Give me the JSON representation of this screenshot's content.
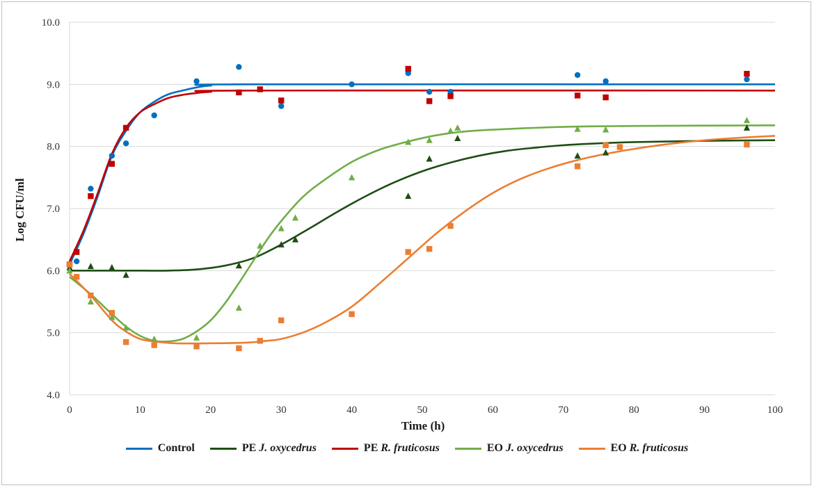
{
  "chart_data": {
    "type": "scatter",
    "title": "",
    "xlabel": "Time (h)",
    "ylabel": "Log CFU/ml",
    "xlim": [
      0,
      100
    ],
    "ylim": [
      4.0,
      10.0
    ],
    "xticks": [
      "0",
      "10",
      "20",
      "30",
      "40",
      "50",
      "60",
      "70",
      "80",
      "90",
      "100"
    ],
    "yticks": [
      "4.0",
      "5.0",
      "6.0",
      "7.0",
      "8.0",
      "9.0",
      "10.0"
    ],
    "grid": "horizontal",
    "legend_position": "bottom",
    "series": [
      {
        "name": "Control",
        "prefix": "Control",
        "italic": "",
        "color": "#0070c0",
        "marker": "circle",
        "points": [
          [
            0,
            6.1
          ],
          [
            1,
            6.15
          ],
          [
            3,
            7.32
          ],
          [
            6,
            7.85
          ],
          [
            8,
            8.05
          ],
          [
            12,
            8.5
          ],
          [
            18,
            9.05
          ],
          [
            24,
            9.28
          ],
          [
            30,
            8.65
          ],
          [
            40,
            9.0
          ],
          [
            48,
            9.18
          ],
          [
            51,
            8.88
          ],
          [
            54,
            8.88
          ],
          [
            72,
            9.15
          ],
          [
            76,
            9.05
          ],
          [
            96,
            9.08
          ]
        ],
        "fit": [
          [
            0,
            6.1
          ],
          [
            2,
            6.6
          ],
          [
            4,
            7.2
          ],
          [
            6,
            7.85
          ],
          [
            8,
            8.25
          ],
          [
            10,
            8.55
          ],
          [
            12,
            8.72
          ],
          [
            14,
            8.84
          ],
          [
            16,
            8.9
          ],
          [
            18,
            8.95
          ],
          [
            20,
            8.98
          ],
          [
            25,
            9.0
          ],
          [
            100,
            9.0
          ]
        ]
      },
      {
        "name": "PE J. oxycedrus",
        "prefix": "PE ",
        "italic": "J. oxycedrus",
        "color": "#1e4d14",
        "marker": "triangle",
        "points": [
          [
            0,
            6.05
          ],
          [
            3,
            6.07
          ],
          [
            6,
            6.05
          ],
          [
            8,
            5.93
          ],
          [
            24,
            6.08
          ],
          [
            30,
            6.42
          ],
          [
            32,
            6.5
          ],
          [
            48,
            7.2
          ],
          [
            51,
            7.8
          ],
          [
            55,
            8.13
          ],
          [
            72,
            7.85
          ],
          [
            76,
            7.9
          ],
          [
            96,
            8.3
          ]
        ],
        "fit": [
          [
            0,
            6.0
          ],
          [
            10,
            6.0
          ],
          [
            14,
            6.0
          ],
          [
            18,
            6.02
          ],
          [
            22,
            6.08
          ],
          [
            26,
            6.2
          ],
          [
            30,
            6.42
          ],
          [
            34,
            6.68
          ],
          [
            38,
            6.95
          ],
          [
            42,
            7.2
          ],
          [
            46,
            7.42
          ],
          [
            50,
            7.6
          ],
          [
            54,
            7.74
          ],
          [
            58,
            7.85
          ],
          [
            62,
            7.93
          ],
          [
            66,
            7.98
          ],
          [
            70,
            8.02
          ],
          [
            75,
            8.05
          ],
          [
            80,
            8.07
          ],
          [
            90,
            8.09
          ],
          [
            100,
            8.1
          ]
        ]
      },
      {
        "name": "PE R. fruticosus",
        "prefix": "PE ",
        "italic": "R. fruticosus",
        "color": "#c00000",
        "marker": "square",
        "points": [
          [
            0,
            6.1
          ],
          [
            1,
            6.3
          ],
          [
            3,
            7.2
          ],
          [
            6,
            7.72
          ],
          [
            8,
            8.3
          ],
          [
            24,
            8.87
          ],
          [
            27,
            8.92
          ],
          [
            30,
            8.74
          ],
          [
            48,
            9.25
          ],
          [
            51,
            8.73
          ],
          [
            54,
            8.81
          ],
          [
            72,
            8.82
          ],
          [
            76,
            8.79
          ],
          [
            96,
            9.17
          ]
        ],
        "fit": [
          [
            0,
            6.15
          ],
          [
            2,
            6.65
          ],
          [
            4,
            7.25
          ],
          [
            6,
            7.88
          ],
          [
            8,
            8.3
          ],
          [
            10,
            8.55
          ],
          [
            12,
            8.68
          ],
          [
            14,
            8.78
          ],
          [
            16,
            8.83
          ],
          [
            18,
            8.86
          ],
          [
            20,
            8.88
          ],
          [
            25,
            8.9
          ],
          [
            100,
            8.9
          ]
        ]
      },
      {
        "name": "EO J. oxycedrus",
        "prefix": "EO ",
        "italic": "J. oxycedrus",
        "color": "#70ad47",
        "marker": "triangle",
        "points": [
          [
            0,
            6.0
          ],
          [
            3,
            5.5
          ],
          [
            6,
            5.25
          ],
          [
            8,
            5.08
          ],
          [
            12,
            4.9
          ],
          [
            18,
            4.92
          ],
          [
            24,
            5.4
          ],
          [
            27,
            6.4
          ],
          [
            30,
            6.68
          ],
          [
            32,
            6.85
          ],
          [
            40,
            7.5
          ],
          [
            48,
            8.07
          ],
          [
            51,
            8.1
          ],
          [
            54,
            8.25
          ],
          [
            55,
            8.3
          ],
          [
            72,
            8.28
          ],
          [
            76,
            8.27
          ],
          [
            96,
            8.42
          ]
        ],
        "fit": [
          [
            0,
            5.9
          ],
          [
            3,
            5.62
          ],
          [
            6,
            5.3
          ],
          [
            8,
            5.1
          ],
          [
            10,
            4.95
          ],
          [
            12,
            4.87
          ],
          [
            14,
            4.86
          ],
          [
            16,
            4.9
          ],
          [
            18,
            5.02
          ],
          [
            20,
            5.2
          ],
          [
            22,
            5.47
          ],
          [
            24,
            5.8
          ],
          [
            26,
            6.15
          ],
          [
            28,
            6.5
          ],
          [
            30,
            6.8
          ],
          [
            33,
            7.18
          ],
          [
            36,
            7.45
          ],
          [
            40,
            7.75
          ],
          [
            44,
            7.95
          ],
          [
            48,
            8.08
          ],
          [
            52,
            8.18
          ],
          [
            56,
            8.24
          ],
          [
            60,
            8.27
          ],
          [
            66,
            8.3
          ],
          [
            72,
            8.32
          ],
          [
            80,
            8.33
          ],
          [
            100,
            8.34
          ]
        ]
      },
      {
        "name": "EO R. fruticosus",
        "prefix": "EO ",
        "italic": "R. fruticosus",
        "color": "#ed7d31",
        "marker": "square",
        "points": [
          [
            0,
            6.1
          ],
          [
            1,
            5.9
          ],
          [
            3,
            5.6
          ],
          [
            6,
            5.32
          ],
          [
            8,
            4.85
          ],
          [
            12,
            4.8
          ],
          [
            18,
            4.78
          ],
          [
            24,
            4.75
          ],
          [
            27,
            4.87
          ],
          [
            30,
            5.2
          ],
          [
            40,
            5.3
          ],
          [
            48,
            6.3
          ],
          [
            51,
            6.35
          ],
          [
            54,
            6.72
          ],
          [
            72,
            7.68
          ],
          [
            76,
            8.02
          ],
          [
            78,
            7.99
          ],
          [
            96,
            8.03
          ]
        ],
        "fit": [
          [
            0,
            5.95
          ],
          [
            3,
            5.6
          ],
          [
            6,
            5.2
          ],
          [
            8,
            5.02
          ],
          [
            10,
            4.9
          ],
          [
            12,
            4.86
          ],
          [
            15,
            4.83
          ],
          [
            20,
            4.83
          ],
          [
            25,
            4.84
          ],
          [
            28,
            4.87
          ],
          [
            30,
            4.9
          ],
          [
            33,
            5.0
          ],
          [
            36,
            5.15
          ],
          [
            40,
            5.42
          ],
          [
            44,
            5.8
          ],
          [
            48,
            6.2
          ],
          [
            52,
            6.6
          ],
          [
            56,
            6.95
          ],
          [
            60,
            7.25
          ],
          [
            64,
            7.48
          ],
          [
            68,
            7.65
          ],
          [
            72,
            7.78
          ],
          [
            76,
            7.88
          ],
          [
            80,
            7.96
          ],
          [
            85,
            8.04
          ],
          [
            90,
            8.1
          ],
          [
            95,
            8.14
          ],
          [
            100,
            8.17
          ]
        ]
      }
    ]
  }
}
